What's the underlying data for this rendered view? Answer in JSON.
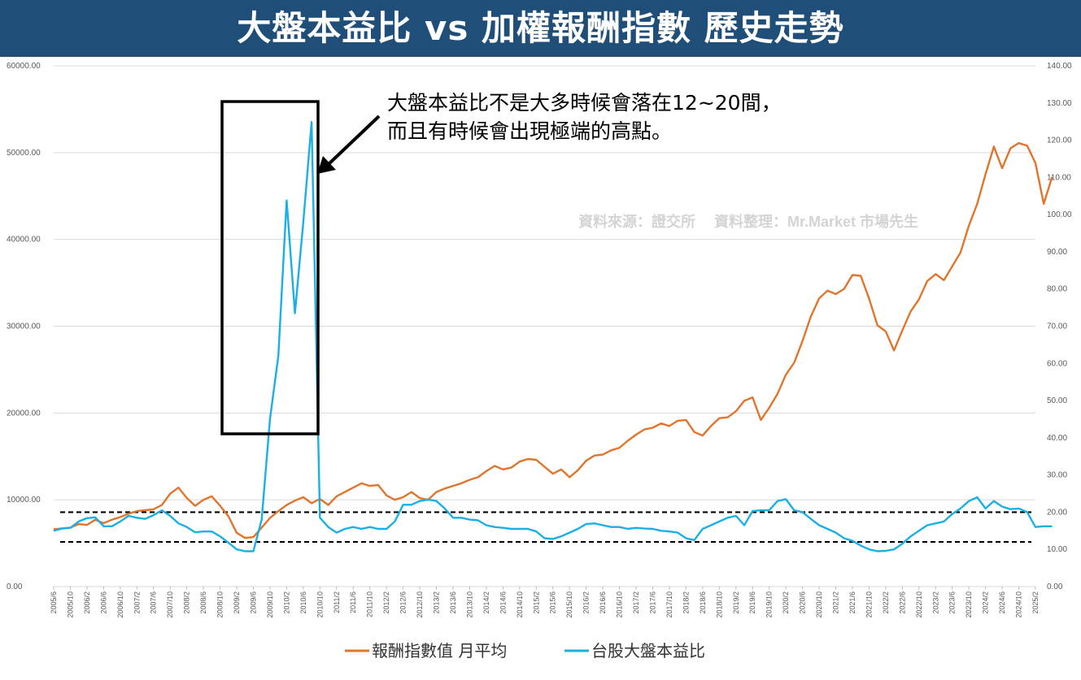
{
  "title": "大盤本益比 vs 加權報酬指數 歷史走勢",
  "annotation": {
    "line1": "大盤本益比不是大多時候會落在12~20間，",
    "line2": "而且有時候會出現極端的高點。"
  },
  "watermark": "資料來源：證交所　 資料整理：Mr.Market 市場先生",
  "colors": {
    "banner": "#1f4e79",
    "return_index": "#e0752d",
    "pe_ratio": "#1ab0e6",
    "grid": "#d9d9d9",
    "axis_text": "#595959"
  },
  "chart_data": {
    "type": "line",
    "title": "大盤本益比 vs 加權報酬指數 歷史走勢",
    "left_axis": {
      "range": [
        0,
        60000
      ],
      "ticks": [
        "0.00",
        "10000.00",
        "20000.00",
        "30000.00",
        "40000.00",
        "50000.00",
        "60000.00"
      ]
    },
    "right_axis": {
      "range": [
        0,
        140
      ],
      "ticks": [
        "0.00",
        "10.00",
        "20.00",
        "30.00",
        "40.00",
        "50.00",
        "60.00",
        "70.00",
        "80.00",
        "90.00",
        "100.00",
        "110.00",
        "120.00",
        "130.00",
        "140.00"
      ]
    },
    "x_labels": [
      "2005/6",
      "2005/10",
      "2006/2",
      "2006/6",
      "2006/10",
      "2007/2",
      "2007/6",
      "2007/10",
      "2008/2",
      "2008/6",
      "2008/10",
      "2009/2",
      "2009/6",
      "2009/10",
      "2010/2",
      "2010/6",
      "2010/10",
      "2011/2",
      "2011/6",
      "2011/10",
      "2012/2",
      "2012/6",
      "2012/10",
      "2013/2",
      "2013/6",
      "2013/10",
      "2014/2",
      "2014/6",
      "2014/10",
      "2015/2",
      "2015/6",
      "2015/10",
      "2016/2",
      "2016/6",
      "2016/10",
      "2017/2",
      "2017/6",
      "2017/10",
      "2018/2",
      "2018/6",
      "2018/10",
      "2019/2",
      "2019/6",
      "2019/10",
      "2020/2",
      "2020/6",
      "2020/10",
      "2021/2",
      "2021/6",
      "2021/10",
      "2022/2",
      "2022/6",
      "2022/10",
      "2023/2",
      "2023/6",
      "2023/10",
      "2024/2",
      "2024/6",
      "2024/10",
      "2025/2"
    ],
    "reference_lines": [
      20,
      12
    ],
    "series": [
      {
        "name": "報酬指數值 月平均",
        "axis": "left",
        "points": [
          [
            0,
            6600
          ],
          [
            0.5,
            6700
          ],
          [
            1,
            6800
          ],
          [
            1.5,
            7200
          ],
          [
            2,
            7100
          ],
          [
            2.5,
            7700
          ],
          [
            3,
            7300
          ],
          [
            3.5,
            7700
          ],
          [
            4,
            8000
          ],
          [
            4.5,
            8400
          ],
          [
            5,
            8700
          ],
          [
            5.5,
            8800
          ],
          [
            6,
            8900
          ],
          [
            6.5,
            9400
          ],
          [
            7,
            10700
          ],
          [
            7.5,
            11400
          ],
          [
            8,
            10200
          ],
          [
            8.5,
            9300
          ],
          [
            9,
            10000
          ],
          [
            9.5,
            10400
          ],
          [
            10,
            9300
          ],
          [
            10.5,
            8100
          ],
          [
            11,
            6200
          ],
          [
            11.5,
            5600
          ],
          [
            12,
            5700
          ],
          [
            12.5,
            6800
          ],
          [
            13,
            7900
          ],
          [
            13.5,
            8700
          ],
          [
            14,
            9400
          ],
          [
            14.5,
            9900
          ],
          [
            15,
            10300
          ],
          [
            15.5,
            9600
          ],
          [
            16,
            10100
          ],
          [
            16.5,
            9400
          ],
          [
            17,
            10400
          ],
          [
            17.5,
            10900
          ],
          [
            18,
            11400
          ],
          [
            18.5,
            11900
          ],
          [
            19,
            11600
          ],
          [
            19.5,
            11700
          ],
          [
            20,
            10500
          ],
          [
            20.5,
            10000
          ],
          [
            21,
            10300
          ],
          [
            21.5,
            10900
          ],
          [
            22,
            10200
          ],
          [
            22.5,
            10000
          ],
          [
            23,
            10900
          ],
          [
            23.5,
            11300
          ],
          [
            24,
            11600
          ],
          [
            24.5,
            11900
          ],
          [
            25,
            12300
          ],
          [
            25.5,
            12600
          ],
          [
            26,
            13300
          ],
          [
            26.5,
            13900
          ],
          [
            27,
            13500
          ],
          [
            27.5,
            13700
          ],
          [
            28,
            14400
          ],
          [
            28.5,
            14700
          ],
          [
            29,
            14600
          ],
          [
            29.5,
            13800
          ],
          [
            30,
            13000
          ],
          [
            30.5,
            13500
          ],
          [
            31,
            12600
          ],
          [
            31.5,
            13400
          ],
          [
            32,
            14500
          ],
          [
            32.5,
            15100
          ],
          [
            33,
            15200
          ],
          [
            33.5,
            15700
          ],
          [
            34,
            16000
          ],
          [
            34.5,
            16800
          ],
          [
            35,
            17500
          ],
          [
            35.5,
            18100
          ],
          [
            36,
            18300
          ],
          [
            36.5,
            18800
          ],
          [
            37,
            18500
          ],
          [
            37.5,
            19100
          ],
          [
            38,
            19200
          ],
          [
            38.5,
            17800
          ],
          [
            39,
            17400
          ],
          [
            39.5,
            18500
          ],
          [
            40,
            19400
          ],
          [
            40.5,
            19500
          ],
          [
            41,
            20200
          ],
          [
            41.5,
            21400
          ],
          [
            42,
            21800
          ],
          [
            42.5,
            19200
          ],
          [
            43,
            20600
          ],
          [
            43.5,
            22200
          ],
          [
            44,
            24400
          ],
          [
            44.5,
            25800
          ],
          [
            45,
            28300
          ],
          [
            45.5,
            31100
          ],
          [
            46,
            33200
          ],
          [
            46.5,
            34100
          ],
          [
            47,
            33700
          ],
          [
            47.5,
            34300
          ],
          [
            48,
            35900
          ],
          [
            48.5,
            35800
          ],
          [
            49,
            33200
          ],
          [
            49.5,
            30100
          ],
          [
            50,
            29400
          ],
          [
            50.5,
            27200
          ],
          [
            51,
            29500
          ],
          [
            51.5,
            31700
          ],
          [
            52,
            33100
          ],
          [
            52.5,
            35200
          ],
          [
            53,
            36000
          ],
          [
            53.5,
            35300
          ],
          [
            54,
            36900
          ],
          [
            54.5,
            38500
          ],
          [
            55,
            41600
          ],
          [
            55.5,
            44100
          ],
          [
            56,
            47500
          ],
          [
            56.5,
            50700
          ],
          [
            57,
            48200
          ],
          [
            57.5,
            50500
          ],
          [
            58,
            51100
          ],
          [
            58.5,
            50800
          ],
          [
            59,
            48800
          ],
          [
            59.5,
            44100
          ],
          [
            60,
            47200
          ]
        ]
      },
      {
        "name": "台股大盤本益比",
        "axis": "right",
        "points": [
          [
            0,
            15.0
          ],
          [
            0.5,
            15.6
          ],
          [
            1,
            15.8
          ],
          [
            1.5,
            17.5
          ],
          [
            2,
            18.4
          ],
          [
            2.5,
            18.6
          ],
          [
            3,
            16.2
          ],
          [
            3.5,
            16.2
          ],
          [
            4,
            17.5
          ],
          [
            4.5,
            19.0
          ],
          [
            5,
            18.5
          ],
          [
            5.5,
            18.2
          ],
          [
            6,
            19.2
          ],
          [
            6.5,
            20.5
          ],
          [
            7,
            19.0
          ],
          [
            7.5,
            17.0
          ],
          [
            8,
            16.0
          ],
          [
            8.5,
            14.6
          ],
          [
            9,
            14.8
          ],
          [
            9.5,
            14.8
          ],
          [
            10,
            13.5
          ],
          [
            10.5,
            11.8
          ],
          [
            11,
            10.0
          ],
          [
            11.5,
            9.5
          ],
          [
            12,
            9.5
          ],
          [
            12.5,
            18.0
          ],
          [
            13,
            45.0
          ],
          [
            13.5,
            62.0
          ],
          [
            14,
            103.8
          ],
          [
            14.5,
            73.5
          ],
          [
            15,
            98.0
          ],
          [
            15.5,
            124.9
          ],
          [
            16,
            18.5
          ],
          [
            16.5,
            16.0
          ],
          [
            17,
            14.5
          ],
          [
            17.5,
            15.5
          ],
          [
            18,
            16.0
          ],
          [
            18.5,
            15.5
          ],
          [
            19,
            16.0
          ],
          [
            19.5,
            15.5
          ],
          [
            20,
            15.5
          ],
          [
            20.5,
            17.5
          ],
          [
            21,
            22.0
          ],
          [
            21.5,
            22.0
          ],
          [
            22,
            23.0
          ],
          [
            22.5,
            23.4
          ],
          [
            23,
            23.0
          ],
          [
            23.5,
            21.0
          ],
          [
            24,
            18.5
          ],
          [
            24.5,
            18.5
          ],
          [
            25,
            18.0
          ],
          [
            25.5,
            17.8
          ],
          [
            26,
            16.5
          ],
          [
            26.5,
            16.0
          ],
          [
            27,
            15.8
          ],
          [
            27.5,
            15.5
          ],
          [
            28,
            15.5
          ],
          [
            28.5,
            15.5
          ],
          [
            29,
            14.8
          ],
          [
            29.5,
            13.0
          ],
          [
            30,
            12.8
          ],
          [
            30.5,
            13.5
          ],
          [
            31,
            14.5
          ],
          [
            31.5,
            15.5
          ],
          [
            32,
            16.8
          ],
          [
            32.5,
            17.0
          ],
          [
            33,
            16.5
          ],
          [
            33.5,
            16.0
          ],
          [
            34,
            16.0
          ],
          [
            34.5,
            15.5
          ],
          [
            35,
            15.8
          ],
          [
            35.5,
            15.6
          ],
          [
            36,
            15.5
          ],
          [
            36.5,
            15.0
          ],
          [
            37,
            14.8
          ],
          [
            37.5,
            14.5
          ],
          [
            38,
            13.0
          ],
          [
            38.5,
            12.5
          ],
          [
            39,
            15.5
          ],
          [
            39.5,
            16.5
          ],
          [
            40,
            17.5
          ],
          [
            40.5,
            18.5
          ],
          [
            41,
            19.0
          ],
          [
            41.5,
            16.5
          ],
          [
            42,
            20.3
          ],
          [
            42.5,
            20.5
          ],
          [
            43,
            20.5
          ],
          [
            43.5,
            23.0
          ],
          [
            44,
            23.5
          ],
          [
            44.5,
            20.5
          ],
          [
            45,
            20.0
          ],
          [
            45.5,
            18.2
          ],
          [
            46,
            16.5
          ],
          [
            46.5,
            15.5
          ],
          [
            47,
            14.5
          ],
          [
            47.5,
            13.0
          ],
          [
            48,
            12.3
          ],
          [
            48.5,
            11.0
          ],
          [
            49,
            10.0
          ],
          [
            49.5,
            9.5
          ],
          [
            50,
            9.6
          ],
          [
            50.5,
            10.0
          ],
          [
            51,
            11.5
          ],
          [
            51.5,
            13.5
          ],
          [
            52,
            15.0
          ],
          [
            52.5,
            16.5
          ],
          [
            53,
            17.0
          ],
          [
            53.5,
            17.5
          ],
          [
            54,
            19.5
          ],
          [
            54.5,
            21.0
          ],
          [
            55,
            23.0
          ],
          [
            55.5,
            24.0
          ],
          [
            56,
            21.0
          ],
          [
            56.5,
            23.0
          ],
          [
            57,
            21.5
          ],
          [
            57.5,
            20.8
          ],
          [
            58,
            21.0
          ],
          [
            58.5,
            20.0
          ],
          [
            59,
            16.0
          ],
          [
            59.5,
            16.2
          ],
          [
            60,
            16.2
          ]
        ]
      }
    ],
    "legend": [
      "報酬指數值 月平均",
      "台股大盤本益比"
    ],
    "legend_position": "bottom"
  }
}
